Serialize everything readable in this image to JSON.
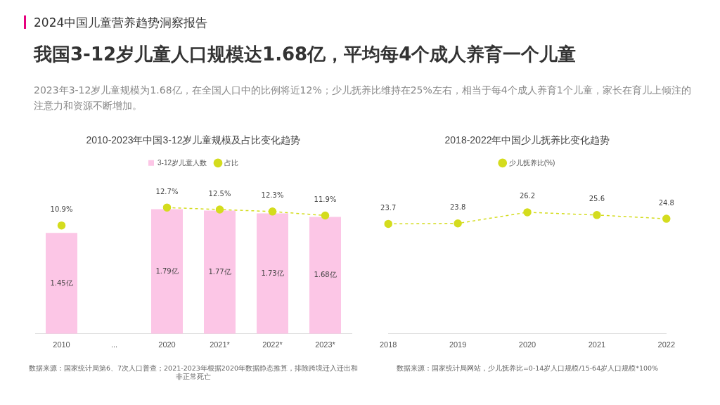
{
  "chart_data": [
    {
      "type": "other",
      "annotations": [
        "2024中国儿童营养趋势洞察报告"
      ],
      "title": "我国3-12岁儿童人口规模达1.68亿，平均每4个成人养育一个儿童",
      "subtitle": "2023年3-12岁儿童规模为1.68亿，在全国人口中的比例将近12%；少儿抚养比维持在25%左右，相当于每4个成人养育1个儿童，家长在育儿上倾注的注意力和资源不断增加。"
    },
    {
      "type": "bar",
      "title": "2010-2023年中国3-12岁儿童规模及占比变化趋势",
      "categories": [
        "2010",
        "...",
        "2020",
        "2021*",
        "2022*",
        "2023*"
      ],
      "series": [
        {
          "name": "3-12岁儿童人数",
          "type": "bar",
          "color": "#fcc6e6",
          "values": [
            1.45,
            null,
            1.79,
            1.77,
            1.73,
            1.68
          ],
          "value_labels": [
            "1.45亿",
            null,
            "1.79亿",
            "1.77亿",
            "1.73亿",
            "1.68亿"
          ]
        },
        {
          "name": "占比",
          "type": "line",
          "axis": "y2",
          "color": "#d4dc1e",
          "values": [
            10.9,
            null,
            12.7,
            12.5,
            12.3,
            11.9
          ],
          "value_labels": [
            "10.9%",
            null,
            "12.7%",
            "12.5%",
            "12.3%",
            "11.9%"
          ]
        }
      ],
      "tick_labels": "x",
      "legend": "top",
      "marker": "circle",
      "line_style": "dashed",
      "annotations": [
        "数据来源：国家统计局第6、7次人口普查；2021-2023年根据2020年数据静态推算，排除跨境迁入迁出和非正常死亡"
      ]
    },
    {
      "type": "line",
      "title": "2018-2022年中国少儿抚养比变化趋势",
      "categories": [
        "2018",
        "2019",
        "2020",
        "2021",
        "2022"
      ],
      "series": [
        {
          "name": "少儿抚养比(%)",
          "color": "#d4dc1e",
          "values": [
            23.7,
            23.8,
            26.2,
            25.6,
            24.8
          ]
        }
      ],
      "tick_labels": "x",
      "legend": "top",
      "marker": "circle",
      "line_style": "dashed",
      "data_labels": true,
      "annotations": [
        "数据来源：国家统计局网站，少儿抚养比=0-14岁人口规模/15-64岁人口规模*100%"
      ]
    }
  ]
}
